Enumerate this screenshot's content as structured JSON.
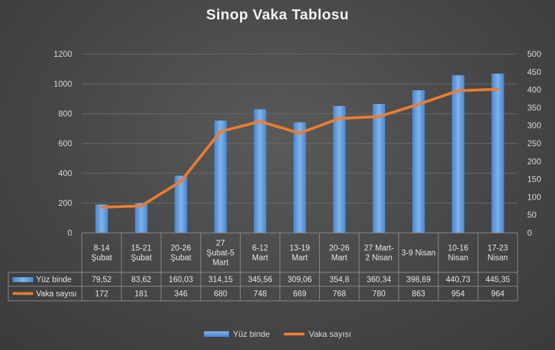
{
  "chart_data": {
    "type": "bar+line",
    "title": "Sinop Vaka Tablosu",
    "categories": [
      [
        "8-14",
        "Şubat"
      ],
      [
        "15-21",
        "Şubat"
      ],
      [
        "20-26",
        "Şubat"
      ],
      [
        "27",
        "Şubat-5",
        "Mart"
      ],
      [
        "6-12",
        "Mart"
      ],
      [
        "13-19",
        "Mart"
      ],
      [
        "20-26",
        "Mart"
      ],
      [
        "27 Mart-",
        "2 Nisan"
      ],
      [
        "3-9 Nisan"
      ],
      [
        "10-16",
        "Nisan"
      ],
      [
        "17-23",
        "Nisan"
      ]
    ],
    "series": [
      {
        "name": "Yüz binde",
        "type": "bar",
        "axis": "right",
        "color": "#5b9bd5",
        "values": [
          79.52,
          83.62,
          160.03,
          314.15,
          345.56,
          309.06,
          354.8,
          360.34,
          398.69,
          440.73,
          445.35
        ],
        "labels": [
          "79,52",
          "83,62",
          "160,03",
          "314,15",
          "345,56",
          "309,06",
          "354,8",
          "360,34",
          "398,69",
          "440,73",
          "445,35"
        ]
      },
      {
        "name": "Vaka sayısı",
        "type": "line",
        "axis": "left",
        "color": "#ec7c30",
        "values": [
          172,
          181,
          346,
          680,
          748,
          669,
          768,
          780,
          863,
          954,
          964
        ],
        "labels": [
          "172",
          "181",
          "346",
          "680",
          "748",
          "669",
          "768",
          "780",
          "863",
          "954",
          "964"
        ]
      }
    ],
    "y_left": {
      "min": 0,
      "max": 1200,
      "ticks": [
        "0",
        "200",
        "400",
        "600",
        "800",
        "1000",
        "1200"
      ]
    },
    "y_right": {
      "min": 0,
      "max": 500,
      "ticks": [
        "0",
        "50",
        "100",
        "150",
        "200",
        "250",
        "300",
        "350",
        "400",
        "450",
        "500"
      ]
    },
    "grid": true,
    "data_table": true,
    "legend_position": "bottom"
  }
}
